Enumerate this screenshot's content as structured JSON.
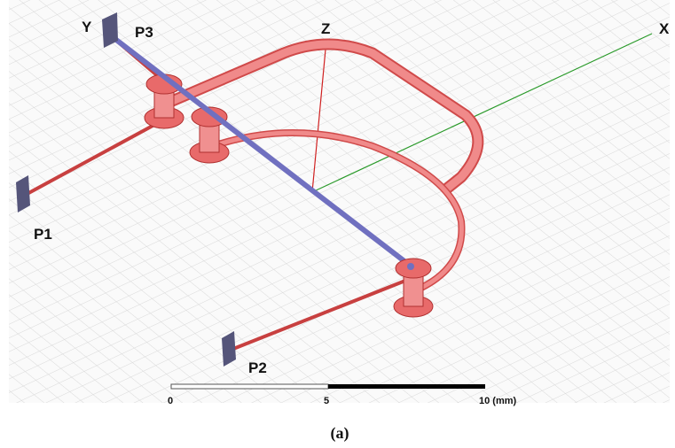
{
  "axes": {
    "x": "X",
    "y": "Y",
    "z": "Z"
  },
  "ports": [
    "P1",
    "P2",
    "P3"
  ],
  "scale_bar": {
    "ticks": [
      "0",
      "5",
      "10 (mm)"
    ]
  },
  "caption": "(a)"
}
